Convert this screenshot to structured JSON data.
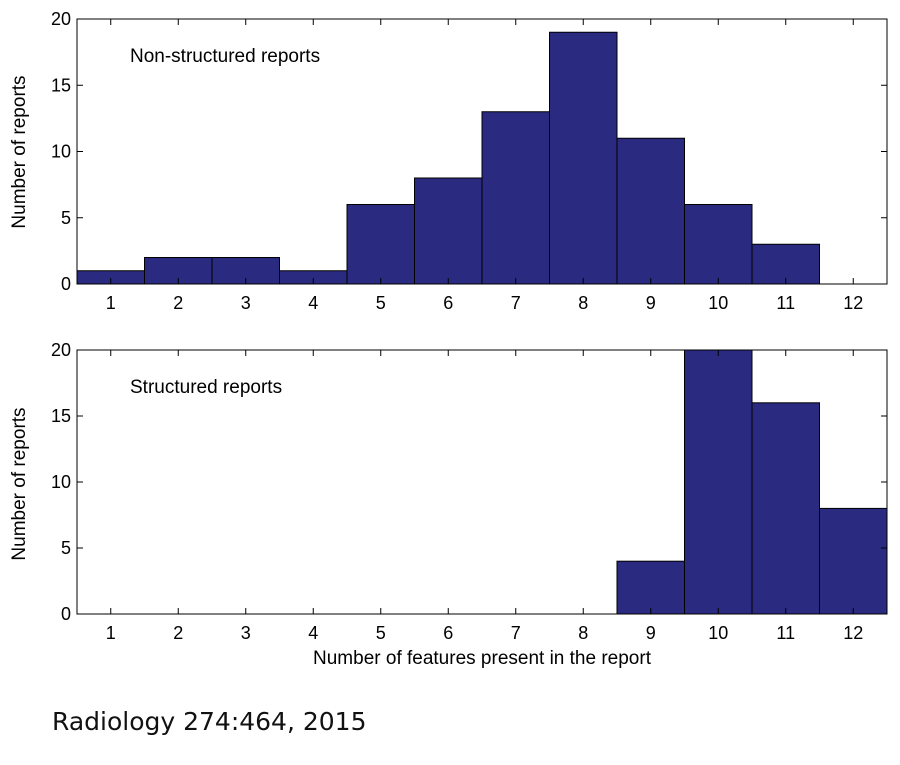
{
  "chart_data": [
    {
      "type": "bar",
      "title": "",
      "annotation": "Non-structured reports",
      "xlabel": "",
      "ylabel": "Number of reports",
      "categories": [
        "1",
        "2",
        "3",
        "4",
        "5",
        "6",
        "7",
        "8",
        "9",
        "10",
        "11",
        "12"
      ],
      "values": [
        1,
        2,
        2,
        1,
        6,
        8,
        13,
        19,
        11,
        6,
        3,
        0
      ],
      "ylim": [
        0,
        20
      ],
      "yticks": [
        0,
        5,
        10,
        15,
        20
      ],
      "bar_color": "#2a2a80",
      "grid": false
    },
    {
      "type": "bar",
      "title": "",
      "annotation": "Structured reports",
      "xlabel": "Number of features present in the report",
      "ylabel": "Number of reports",
      "categories": [
        "1",
        "2",
        "3",
        "4",
        "5",
        "6",
        "7",
        "8",
        "9",
        "10",
        "11",
        "12"
      ],
      "values": [
        0,
        0,
        0,
        0,
        0,
        0,
        0,
        0,
        4,
        20,
        16,
        8
      ],
      "ylim": [
        0,
        20
      ],
      "yticks": [
        0,
        5,
        10,
        15,
        20
      ],
      "bar_color": "#2a2a80",
      "grid": false
    }
  ],
  "caption": "Radiology 274:464, 2015"
}
